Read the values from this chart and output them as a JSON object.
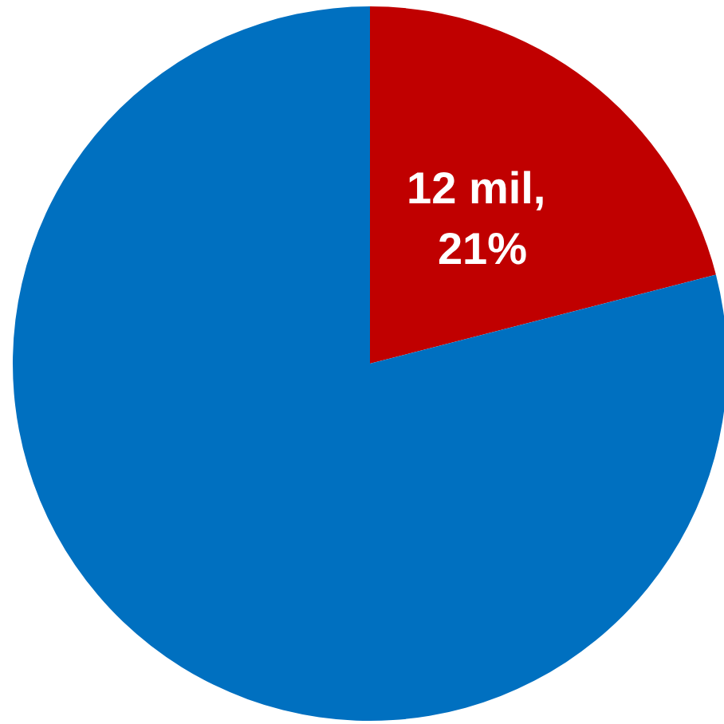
{
  "chart_data": {
    "type": "pie",
    "categories": [
      null,
      null
    ],
    "values": [
      21,
      79
    ],
    "colors": [
      "#c00000",
      "#0070c0"
    ],
    "value_labels": [
      "12 mil, 21%",
      null
    ]
  }
}
